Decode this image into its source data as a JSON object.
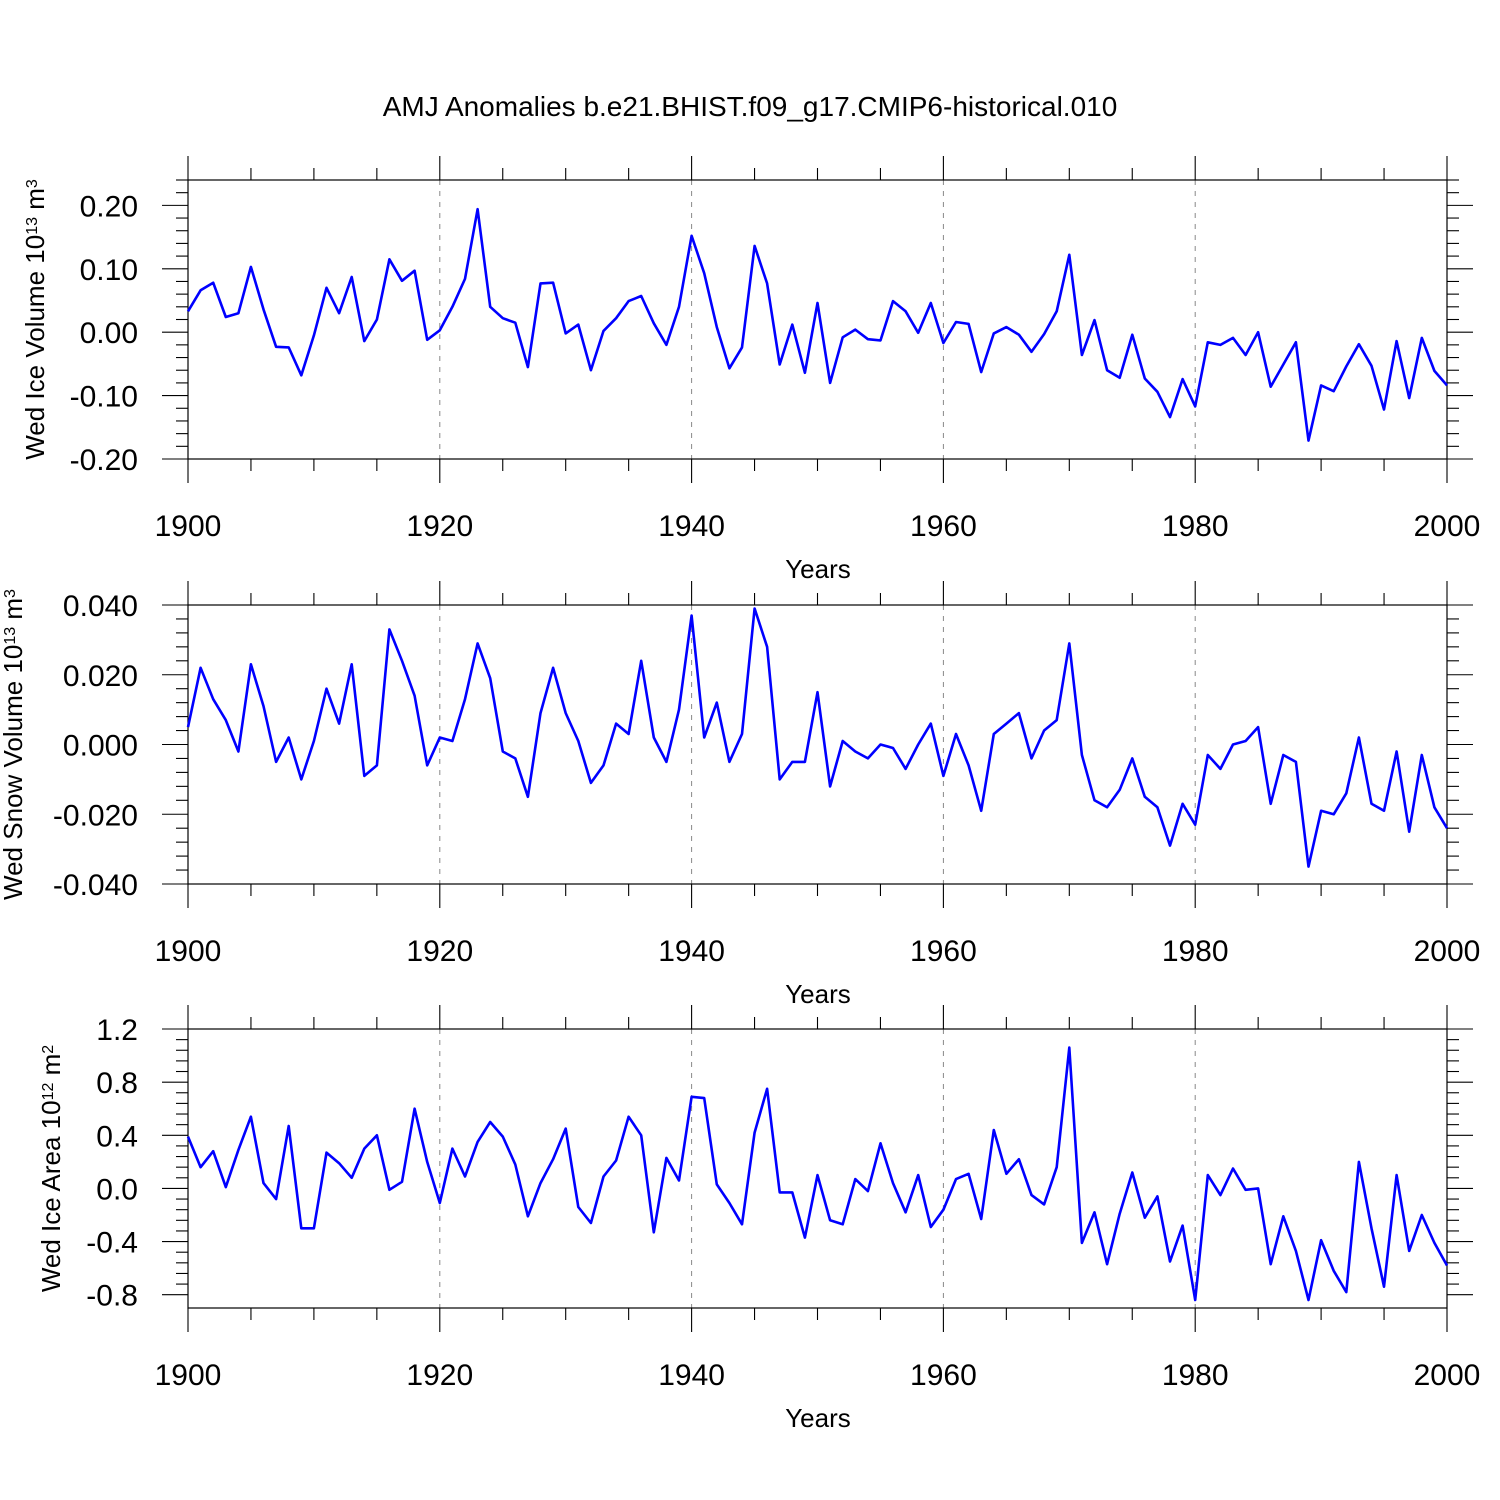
{
  "title": "AMJ Anomalies b.e21.BHIST.f09_g17.CMIP6-historical.010",
  "chart_data": [
    {
      "type": "line",
      "ylabel": "Wed Ice Volume 10",
      "ylabel_exp": "13",
      "ylabel_unit": " m",
      "ylabel_unit_exp": "3",
      "xlabel": "Years",
      "xlim": [
        1900,
        2000
      ],
      "ylim": [
        -0.2,
        0.24
      ],
      "yticks": [
        0.2,
        0.1,
        0.0,
        -0.1,
        -0.2
      ],
      "ytick_labels": [
        "0.20",
        "0.10",
        "0.00",
        "-0.10",
        "-0.20"
      ],
      "xticks": [
        1900,
        1920,
        1940,
        1960,
        1980,
        2000
      ],
      "xtick_labels": [
        "1900",
        "1920",
        "1940",
        "1960",
        "1980",
        "2000"
      ],
      "grid_x": [
        1920,
        1940,
        1960,
        1980
      ],
      "color": "#0000ff",
      "x_start": 1900,
      "values": [
        0.033,
        0.066,
        0.078,
        0.024,
        0.03,
        0.103,
        0.036,
        -0.023,
        -0.024,
        -0.068,
        -0.005,
        0.07,
        0.03,
        0.087,
        -0.014,
        0.02,
        0.115,
        0.081,
        0.097,
        -0.012,
        0.003,
        0.04,
        0.084,
        0.194,
        0.04,
        0.022,
        0.015,
        -0.055,
        0.077,
        0.078,
        -0.002,
        0.012,
        -0.06,
        0.002,
        0.022,
        0.049,
        0.057,
        0.014,
        -0.02,
        0.04,
        0.152,
        0.093,
        0.008,
        -0.057,
        -0.024,
        0.136,
        0.077,
        -0.051,
        0.012,
        -0.064,
        0.046,
        -0.08,
        -0.008,
        0.004,
        -0.011,
        -0.013,
        0.049,
        0.033,
        -0.001,
        0.046,
        -0.017,
        0.016,
        0.013,
        -0.063,
        -0.002,
        0.008,
        -0.004,
        -0.031,
        -0.003,
        0.033,
        0.122,
        -0.036,
        0.019,
        -0.06,
        -0.072,
        -0.004,
        -0.073,
        -0.094,
        -0.134,
        -0.074,
        -0.117,
        -0.016,
        -0.02,
        -0.009,
        -0.036,
        0.0,
        -0.086,
        -0.051,
        -0.016,
        -0.171,
        -0.084,
        -0.093,
        -0.054,
        -0.019,
        -0.053,
        -0.122,
        -0.014,
        -0.104,
        -0.009,
        -0.061,
        -0.084
      ]
    },
    {
      "type": "line",
      "ylabel": "Wed Snow Volume 10",
      "ylabel_exp": "13",
      "ylabel_unit": " m",
      "ylabel_unit_exp": "3",
      "xlabel": "Years",
      "xlim": [
        1900,
        2000
      ],
      "ylim": [
        -0.04,
        0.04
      ],
      "yticks": [
        0.04,
        0.02,
        0.0,
        -0.02,
        -0.04
      ],
      "ytick_labels": [
        "0.040",
        "0.020",
        "0.000",
        "-0.020",
        "-0.040"
      ],
      "xticks": [
        1900,
        1920,
        1940,
        1960,
        1980,
        2000
      ],
      "xtick_labels": [
        "1900",
        "1920",
        "1940",
        "1960",
        "1980",
        "2000"
      ],
      "grid_x": [
        1920,
        1940,
        1960,
        1980
      ],
      "color": "#0000ff",
      "x_start": 1900,
      "values": [
        0.005,
        0.022,
        0.013,
        0.007,
        -0.002,
        0.023,
        0.011,
        -0.005,
        0.002,
        -0.01,
        0.001,
        0.016,
        0.006,
        0.023,
        -0.009,
        -0.006,
        0.033,
        0.024,
        0.014,
        -0.006,
        0.002,
        0.001,
        0.013,
        0.029,
        0.019,
        -0.002,
        -0.004,
        -0.015,
        0.009,
        0.022,
        0.009,
        0.001,
        -0.011,
        -0.006,
        0.006,
        0.003,
        0.024,
        0.002,
        -0.005,
        0.01,
        0.037,
        0.002,
        0.012,
        -0.005,
        0.003,
        0.039,
        0.028,
        -0.01,
        -0.005,
        -0.005,
        0.015,
        -0.012,
        0.001,
        -0.002,
        -0.004,
        0.0,
        -0.001,
        -0.007,
        0.0,
        0.006,
        -0.009,
        0.003,
        -0.006,
        -0.019,
        0.003,
        0.006,
        0.009,
        -0.004,
        0.004,
        0.007,
        0.029,
        -0.003,
        -0.016,
        -0.018,
        -0.013,
        -0.004,
        -0.015,
        -0.018,
        -0.029,
        -0.017,
        -0.023,
        -0.003,
        -0.007,
        0.0,
        0.001,
        0.005,
        -0.017,
        -0.003,
        -0.005,
        -0.035,
        -0.019,
        -0.02,
        -0.014,
        0.002,
        -0.017,
        -0.019,
        -0.002,
        -0.025,
        -0.003,
        -0.018,
        -0.024
      ]
    },
    {
      "type": "line",
      "ylabel": "Wed Ice Area 10",
      "ylabel_exp": "12",
      "ylabel_unit": " m",
      "ylabel_unit_exp": "2",
      "xlabel": "Years",
      "xlim": [
        1900,
        2000
      ],
      "ylim": [
        -0.9,
        1.2
      ],
      "yticks": [
        1.2,
        0.8,
        0.4,
        0.0,
        -0.4,
        -0.8
      ],
      "ytick_labels": [
        "1.2",
        "0.8",
        "0.4",
        "0.0",
        "-0.4",
        "-0.8"
      ],
      "xticks": [
        1900,
        1920,
        1940,
        1960,
        1980,
        2000
      ],
      "xtick_labels": [
        "1900",
        "1920",
        "1940",
        "1960",
        "1980",
        "2000"
      ],
      "grid_x": [
        1920,
        1940,
        1960,
        1980
      ],
      "color": "#0000ff",
      "x_start": 1900,
      "values": [
        0.39,
        0.16,
        0.28,
        0.01,
        0.29,
        0.54,
        0.04,
        -0.08,
        0.47,
        -0.3,
        -0.3,
        0.27,
        0.19,
        0.08,
        0.3,
        0.4,
        -0.01,
        0.05,
        0.6,
        0.2,
        -0.11,
        0.3,
        0.09,
        0.35,
        0.5,
        0.39,
        0.18,
        -0.21,
        0.04,
        0.22,
        0.45,
        -0.14,
        -0.26,
        0.09,
        0.21,
        0.54,
        0.4,
        -0.33,
        0.23,
        0.06,
        0.69,
        0.68,
        0.03,
        -0.11,
        -0.27,
        0.42,
        0.75,
        -0.03,
        -0.03,
        -0.37,
        0.1,
        -0.24,
        -0.27,
        0.07,
        -0.02,
        0.34,
        0.04,
        -0.18,
        0.1,
        -0.29,
        -0.16,
        0.07,
        0.11,
        -0.23,
        0.44,
        0.11,
        0.22,
        -0.05,
        -0.12,
        0.16,
        1.06,
        -0.41,
        -0.18,
        -0.57,
        -0.19,
        0.12,
        -0.22,
        -0.06,
        -0.55,
        -0.28,
        -0.84,
        0.1,
        -0.05,
        0.15,
        -0.01,
        0.0,
        -0.57,
        -0.21,
        -0.47,
        -0.84,
        -0.39,
        -0.62,
        -0.78,
        0.2,
        -0.3,
        -0.74,
        0.1,
        -0.47,
        -0.2,
        -0.41,
        -0.58
      ]
    }
  ]
}
